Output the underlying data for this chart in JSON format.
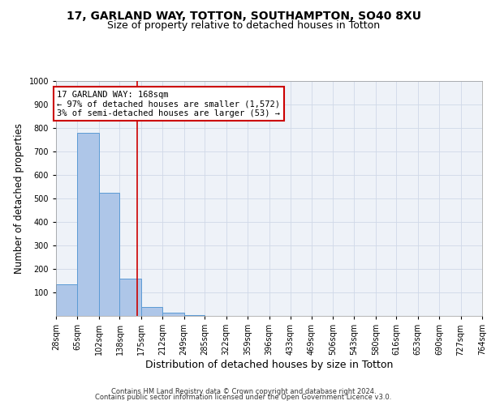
{
  "title1": "17, GARLAND WAY, TOTTON, SOUTHAMPTON, SO40 8XU",
  "title2": "Size of property relative to detached houses in Totton",
  "xlabel": "Distribution of detached houses by size in Totton",
  "ylabel": "Number of detached properties",
  "bar_edges": [
    28,
    65,
    102,
    138,
    175,
    212,
    249,
    285,
    322,
    359,
    396,
    433,
    469,
    506,
    543,
    580,
    616,
    653,
    690,
    727,
    764
  ],
  "bar_heights": [
    133,
    778,
    523,
    159,
    37,
    14,
    2,
    1,
    0,
    0,
    0,
    0,
    0,
    0,
    0,
    0,
    0,
    0,
    0,
    0
  ],
  "bar_color": "#aec6e8",
  "bar_edge_color": "#5b9bd5",
  "property_size": 168,
  "red_line_color": "#cc0000",
  "annotation_line1": "17 GARLAND WAY: 168sqm",
  "annotation_line2": "← 97% of detached houses are smaller (1,572)",
  "annotation_line3": "3% of semi-detached houses are larger (53) →",
  "annotation_box_color": "#ffffff",
  "annotation_box_edge": "#cc0000",
  "footer1": "Contains HM Land Registry data © Crown copyright and database right 2024.",
  "footer2": "Contains public sector information licensed under the Open Government Licence v3.0.",
  "ylim": [
    0,
    1000
  ],
  "yticks": [
    0,
    100,
    200,
    300,
    400,
    500,
    600,
    700,
    800,
    900,
    1000
  ],
  "grid_color": "#d0d8e8",
  "bg_color": "#eef2f8",
  "title1_fontsize": 10,
  "title2_fontsize": 9,
  "tick_fontsize": 7,
  "ylabel_fontsize": 8.5,
  "xlabel_fontsize": 9,
  "annotation_fontsize": 7.5,
  "footer_fontsize": 6
}
